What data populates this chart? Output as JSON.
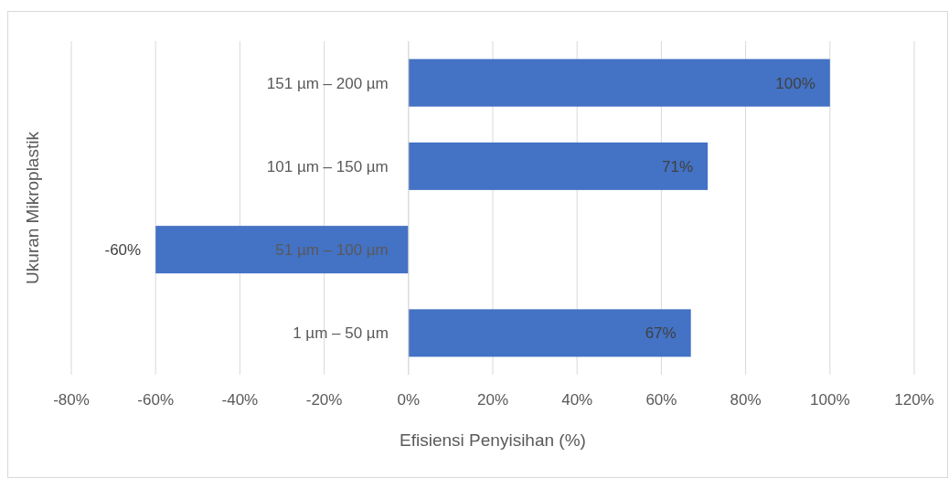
{
  "chart_data": {
    "type": "bar",
    "orientation": "horizontal",
    "xlabel": "Efisiensi Penyisihan (%)",
    "ylabel": "Ukuran Mikroplastik",
    "categories": [
      "151 µm – 200 µm",
      "101 µm –  150 µm",
      "51 µm – 100 µm",
      "1 µm – 50 µm"
    ],
    "values": [
      100,
      71,
      -60,
      67
    ],
    "color": "#4472c4",
    "value_labels": [
      "100%",
      "71%",
      "-60%",
      "67%"
    ],
    "xlim": [
      -80,
      120
    ],
    "xticks": [
      {
        "value": -80,
        "label": "-80%"
      },
      {
        "value": -60,
        "label": "-60%"
      },
      {
        "value": -40,
        "label": "-40%"
      },
      {
        "value": -20,
        "label": "-20%"
      },
      {
        "value": 0,
        "label": "0%"
      },
      {
        "value": 20,
        "label": "20%"
      },
      {
        "value": 40,
        "label": "40%"
      },
      {
        "value": 60,
        "label": "60%"
      },
      {
        "value": 80,
        "label": "80%"
      },
      {
        "value": 100,
        "label": "100%"
      },
      {
        "value": 120,
        "label": "120%"
      }
    ],
    "grid": "x"
  }
}
